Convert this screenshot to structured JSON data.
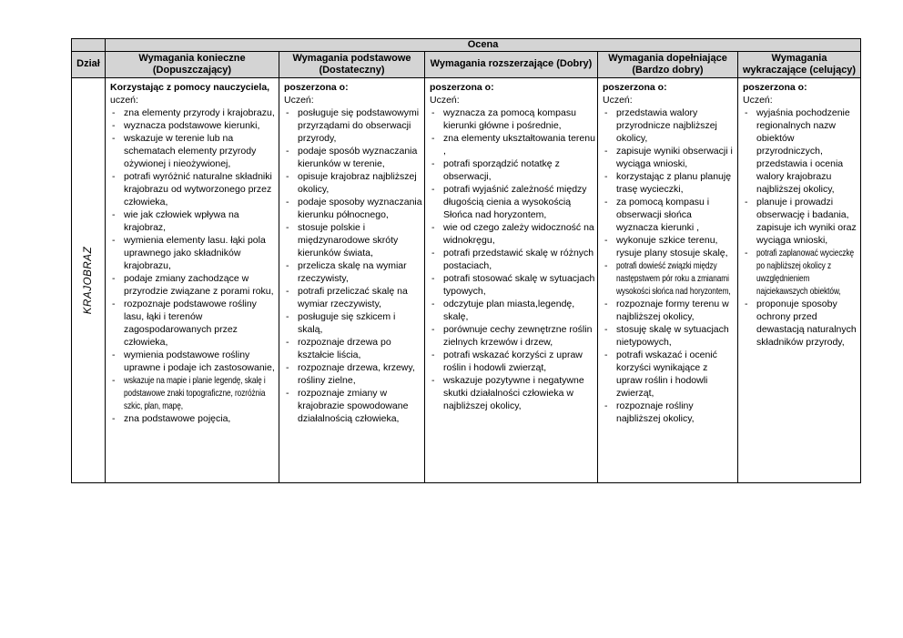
{
  "page": {
    "background": "#ffffff",
    "border_color": "#000000",
    "header_bg": "#d4d4d4"
  },
  "table": {
    "grade_header": "Ocena",
    "section_header": "Dział",
    "section_value": "KRAJOBRAZ",
    "columns": [
      {
        "header": "Wymagania konieczne (Dopuszczający)",
        "intro_bold": "Korzystając z pomocy nauczyciela,",
        "intro_normal": "uczeń:",
        "items": [
          {
            "text": "zna elementy przyrody i krajobrazu,"
          },
          {
            "text": "wyznacza podstawowe kierunki,"
          },
          {
            "text": "wskazuje w terenie lub na schematach elementy przyrody ożywionej i nieożywionej,"
          },
          {
            "text": "potrafi wyróżnić naturalne składniki krajobrazu od wytworzonego przez człowieka,"
          },
          {
            "text": "wie jak człowiek wpływa na krajobraz,"
          },
          {
            "text": "wymienia elementy lasu. łąki pola uprawnego jako składników krajobrazu,"
          },
          {
            "text": "podaje zmiany zachodzące w przyrodzie związane z porami roku,"
          },
          {
            "text": "rozpoznaje podstawowe rośliny lasu, łąki i terenów zagospodarowanych przez człowieka,"
          },
          {
            "text": "wymienia podstawowe rośliny uprawne i podaje ich zastosowanie,"
          },
          {
            "text": "wskazuje na mapie i planie legendę, skalę i podstawowe znaki topograficzne, rozróżnia szkic, plan, mapę,",
            "condensed": true
          },
          {
            "text": "zna podstawowe pojęcia,"
          }
        ]
      },
      {
        "header": "Wymagania podstawowe (Dostateczny)",
        "intro_bold": "poszerzona o:",
        "intro_normal": "Uczeń:",
        "items": [
          {
            "text": "posługuje się podstawowymi przyrządami do obserwacji przyrody,"
          },
          {
            "text": "podaje sposób wyznaczania kierunków w terenie,"
          },
          {
            "text": "opisuje krajobraz najbliższej okolicy,"
          },
          {
            "text": "podaje sposoby wyznaczania kierunku północnego,"
          },
          {
            "text": "stosuje polskie i międzynarodowe skróty kierunków świata,"
          },
          {
            "text": "przelicza skalę na wymiar rzeczywisty,"
          },
          {
            "text": "potrafi przeliczać skalę na wymiar rzeczywisty,"
          },
          {
            "text": "posługuje się szkicem i skalą,"
          },
          {
            "text": "rozpoznaje drzewa po kształcie liścia,"
          },
          {
            "text": "rozpoznaje drzewa, krzewy, rośliny zielne,"
          },
          {
            "text": "rozpoznaje zmiany w krajobrazie spowodowane działalnością człowieka,"
          }
        ]
      },
      {
        "header": "Wymagania rozszerzające (Dobry)",
        "intro_bold": "poszerzona o:",
        "intro_normal": "Uczeń:",
        "items": [
          {
            "text": "wyznacza za pomocą kompasu kierunki główne i pośrednie,"
          },
          {
            "text": "zna elementy ukształtowania terenu ,"
          },
          {
            "text": "potrafi sporządzić notatkę z obserwacji,"
          },
          {
            "text": "potrafi wyjaśnić zależność między długością cienia a wysokością Słońca nad horyzontem,"
          },
          {
            "text": "wie od czego zależy widoczność na widnokręgu,"
          },
          {
            "text": "potrafi przedstawić skalę w różnych postaciach,"
          },
          {
            "text": "potrafi stosować skalę w sytuacjach typowych,"
          },
          {
            "text": "odczytuje plan miasta,legendę, skalę,"
          },
          {
            "text": "porównuje cechy zewnętrzne roślin zielnych  krzewów i drzew,"
          },
          {
            "text": "potrafi wskazać korzyści z upraw roślin i hodowli zwierząt,"
          },
          {
            "text": "wskazuje pozytywne i negatywne skutki działalności człowieka  w najbliższej okolicy,"
          }
        ]
      },
      {
        "header": "Wymagania dopełniające (Bardzo dobry)",
        "intro_bold": "poszerzona o:",
        "intro_normal": "Uczeń:",
        "items": [
          {
            "text": "przedstawia walory przyrodnicze najbliższej okolicy,"
          },
          {
            "text": "zapisuje wyniki obserwacji i wyciąga wnioski,"
          },
          {
            "text": "korzystając z planu planuję trasę wycieczki,"
          },
          {
            "text": "za pomocą kompasu i obserwacji słońca wyznacza kierunki ,"
          },
          {
            "text": "wykonuje szkice terenu, rysuje plany stosuje skalę,"
          },
          {
            "text": "potrafi dowieść związki między następstwem pór roku a zmianami wysokości słońca nad horyzontem,",
            "condensed": true
          },
          {
            "text": "rozpoznaje formy terenu w najbliższej okolicy,"
          },
          {
            "text": "stosuję skalę w sytuacjach nietypowych,"
          },
          {
            "text": "potrafi wskazać i ocenić korzyści wynikające z upraw roślin i hodowli zwierząt,"
          },
          {
            "text": "rozpoznaje rośliny najbliższej okolicy,"
          }
        ]
      },
      {
        "header": "Wymagania wykraczające (celujący)",
        "intro_bold": "poszerzona o:",
        "intro_normal": "Uczeń:",
        "items": [
          {
            "text": "wyjaśnia pochodzenie regionalnych nazw obiektów przyrodniczych, przedstawia i ocenia walory krajobrazu najbliższej okolicy,"
          },
          {
            "text": "planuje i prowadzi obserwację i badania, zapisuje ich wyniki oraz wyciąga wnioski,"
          },
          {
            "text": "potrafi zaplanować wycieczkę po najbliższej okolicy z uwzględnieniem najciekawszych obiektów,",
            "condensed": true
          },
          {
            "text": "proponuje sposoby ochrony przed dewastacją naturalnych składników przyrody,"
          }
        ]
      }
    ]
  }
}
